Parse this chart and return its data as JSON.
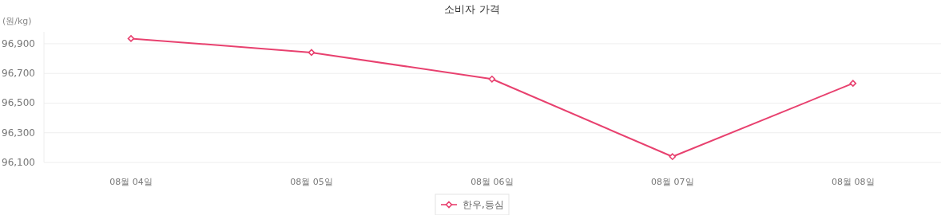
{
  "chart_data": {
    "type": "line",
    "title": "소비자 가격",
    "ylabel": "(원/kg)",
    "categories": [
      "08월 04일",
      "08월 05일",
      "08월 06일",
      "08월 07일",
      "08월 08일"
    ],
    "series": [
      {
        "name": "한우,등심",
        "color": "#e8416f",
        "values": [
          96935,
          96841,
          96662,
          96139,
          96633
        ]
      }
    ],
    "ylim": [
      96100,
      96980
    ],
    "yticks": [
      {
        "value": 96100,
        "label": "96,100"
      },
      {
        "value": 96300,
        "label": "96,300"
      },
      {
        "value": 96500,
        "label": "96,500"
      },
      {
        "value": 96700,
        "label": "96,700"
      },
      {
        "value": 96900,
        "label": "96,900"
      }
    ],
    "grid": "y",
    "legend": "bottom",
    "marker": "diamond",
    "line_style": "solid"
  }
}
